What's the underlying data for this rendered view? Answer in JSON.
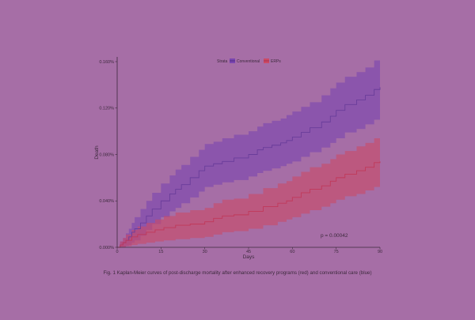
{
  "figure": {
    "caption": "Fig. 1  Kaplan-Meier curves of post-discharge mortality after enhanced recovery programs (red) and conventional care (blue)",
    "background": "#a66ea6"
  },
  "chart_data": {
    "type": "line",
    "title": "",
    "xlabel": "Days",
    "ylabel": "Death",
    "xlim": [
      0,
      90
    ],
    "ylim": [
      0,
      0.0016
    ],
    "x_ticks": [
      0,
      15,
      30,
      45,
      60,
      75,
      90
    ],
    "x_tick_labels": [
      "0",
      "15",
      "30",
      "45",
      "60",
      "75",
      "90"
    ],
    "y_ticks": [
      0,
      0.0004,
      0.0008,
      0.0012,
      0.0016
    ],
    "y_tick_labels": [
      "0.000%",
      "0.040%",
      "0.080%",
      "0.120%",
      "0.160%"
    ],
    "legend": {
      "title": "Strata",
      "position": "top"
    },
    "annotation": "p = 0.00042",
    "grid": false,
    "step": true,
    "series": [
      {
        "name": "Conventional",
        "color": "#6a3d9a",
        "band_color": "#7a45b0",
        "x": [
          0,
          1,
          2,
          3,
          4,
          5,
          6,
          8,
          10,
          12,
          15,
          18,
          20,
          22,
          25,
          28,
          30,
          33,
          36,
          40,
          45,
          48,
          50,
          53,
          56,
          58,
          60,
          63,
          66,
          70,
          73,
          75,
          78,
          82,
          85,
          88,
          90
        ],
        "y": [
          0,
          2e-05,
          4e-05,
          6e-05,
          9e-05,
          0.00013,
          0.00016,
          0.00021,
          0.00027,
          0.00033,
          0.0004,
          0.00046,
          0.0005,
          0.00054,
          0.0006,
          0.00066,
          0.0007,
          0.00072,
          0.00074,
          0.00077,
          0.0008,
          0.00084,
          0.00086,
          0.00088,
          0.0009,
          0.00092,
          0.00095,
          0.00099,
          0.00103,
          0.00108,
          0.00113,
          0.00118,
          0.00123,
          0.00127,
          0.00131,
          0.00136,
          0.00138
        ],
        "lower": [
          0,
          0.0,
          0.0,
          1e-05,
          2e-05,
          4e-05,
          6e-05,
          0.0001,
          0.00015,
          0.0002,
          0.00026,
          0.00031,
          0.00034,
          0.00038,
          0.00043,
          0.00048,
          0.00052,
          0.00054,
          0.00056,
          0.00058,
          0.00061,
          0.00064,
          0.00066,
          0.00068,
          0.0007,
          0.00072,
          0.00074,
          0.00078,
          0.00082,
          0.00086,
          0.0009,
          0.00094,
          0.00099,
          0.00102,
          0.00106,
          0.0011,
          0.00112
        ],
        "upper": [
          0,
          5e-05,
          8e-05,
          0.00012,
          0.00016,
          0.00021,
          0.00026,
          0.00033,
          0.0004,
          0.00047,
          0.00055,
          0.00062,
          0.00067,
          0.00071,
          0.00078,
          0.00084,
          0.00089,
          0.00091,
          0.00094,
          0.00097,
          0.001,
          0.00104,
          0.00107,
          0.00109,
          0.00111,
          0.00114,
          0.00117,
          0.00121,
          0.00125,
          0.00131,
          0.00137,
          0.00142,
          0.00147,
          0.00151,
          0.00155,
          0.00161,
          0.00164
        ]
      },
      {
        "name": "ERPs",
        "color": "#c0395a",
        "band_color": "#cc4a66",
        "x": [
          0,
          1,
          2,
          3,
          5,
          7,
          10,
          13,
          16,
          20,
          25,
          30,
          33,
          36,
          40,
          45,
          50,
          55,
          58,
          60,
          63,
          66,
          70,
          73,
          75,
          78,
          82,
          85,
          88,
          90
        ],
        "y": [
          0,
          2e-05,
          4e-05,
          6e-05,
          9e-05,
          0.00011,
          0.00013,
          0.00015,
          0.00017,
          0.00019,
          0.0002,
          0.00022,
          0.00025,
          0.00027,
          0.00028,
          0.00031,
          0.00035,
          0.00038,
          0.0004,
          0.00043,
          0.00047,
          0.0005,
          0.00053,
          0.00057,
          0.0006,
          0.00063,
          0.00066,
          0.00069,
          0.00073,
          0.00074
        ],
        "lower": [
          0,
          0.0,
          0.0,
          1e-05,
          2e-05,
          3e-05,
          4e-05,
          5e-05,
          6e-05,
          7e-05,
          8e-05,
          9e-05,
          0.00011,
          0.00013,
          0.00014,
          0.00016,
          0.00019,
          0.00022,
          0.00024,
          0.00026,
          0.00029,
          0.00032,
          0.00035,
          0.00038,
          0.00041,
          0.00044,
          0.00046,
          0.00049,
          0.00052,
          0.00053
        ],
        "upper": [
          0,
          5e-05,
          8e-05,
          0.00011,
          0.00015,
          0.00018,
          0.00021,
          0.00024,
          0.00027,
          0.0003,
          0.00032,
          0.00034,
          0.00038,
          0.00041,
          0.00042,
          0.00046,
          0.00051,
          0.00055,
          0.00057,
          0.00061,
          0.00065,
          0.00069,
          0.00072,
          0.00076,
          0.0008,
          0.00083,
          0.00087,
          0.0009,
          0.00094,
          0.00095
        ]
      }
    ]
  }
}
